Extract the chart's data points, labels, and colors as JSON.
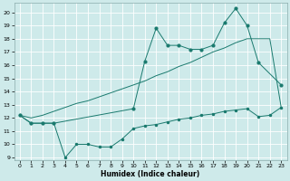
{
  "xlabel": "Humidex (Indice chaleur)",
  "bg_color": "#ceeaea",
  "line_color": "#1a7a6e",
  "grid_color": "#ffffff",
  "xlim": [
    -0.5,
    23.5
  ],
  "ylim": [
    8.8,
    20.7
  ],
  "yticks": [
    9,
    10,
    11,
    12,
    13,
    14,
    15,
    16,
    17,
    18,
    19,
    20
  ],
  "xticks": [
    0,
    1,
    2,
    3,
    4,
    5,
    6,
    7,
    8,
    9,
    10,
    11,
    12,
    13,
    14,
    15,
    16,
    17,
    18,
    19,
    20,
    21,
    22,
    23
  ],
  "s1x": [
    0,
    1,
    2,
    3,
    10,
    11,
    12,
    13,
    14,
    15,
    16,
    17,
    18,
    19,
    20,
    21,
    23
  ],
  "s1y": [
    12.2,
    11.6,
    11.6,
    11.6,
    12.7,
    16.3,
    18.8,
    17.5,
    17.5,
    17.2,
    17.2,
    17.5,
    19.2,
    20.3,
    19.0,
    16.2,
    14.5
  ],
  "s2x": [
    0,
    1,
    2,
    3,
    4,
    5,
    6,
    7,
    8,
    9,
    10,
    11,
    12,
    13,
    14,
    15,
    16,
    17,
    18,
    19,
    20,
    21,
    22,
    23
  ],
  "s2y": [
    12.2,
    12.0,
    12.2,
    12.5,
    12.8,
    13.1,
    13.3,
    13.6,
    13.9,
    14.2,
    14.5,
    14.8,
    15.2,
    15.5,
    15.9,
    16.2,
    16.6,
    17.0,
    17.3,
    17.7,
    18.0,
    18.0,
    18.0,
    12.8
  ],
  "s3x": [
    0,
    1,
    2,
    3,
    4,
    5,
    6,
    7,
    8,
    9,
    10,
    11,
    12,
    13,
    14,
    15,
    16,
    17,
    18,
    19,
    20,
    21,
    22,
    23
  ],
  "s3y": [
    12.2,
    11.6,
    11.6,
    11.6,
    9.0,
    10.0,
    10.0,
    9.8,
    9.8,
    10.4,
    11.2,
    11.4,
    11.5,
    11.7,
    11.9,
    12.0,
    12.2,
    12.3,
    12.5,
    12.6,
    12.7,
    12.1,
    12.2,
    12.8
  ]
}
